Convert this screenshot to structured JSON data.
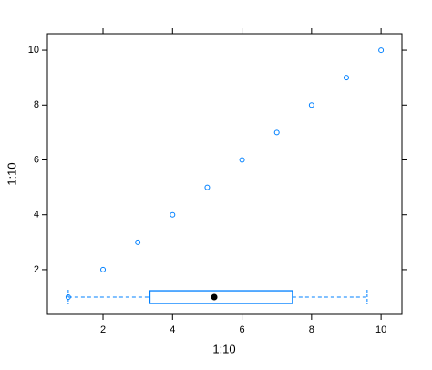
{
  "chart_data": {
    "type": "scatter",
    "xlabel": "1:10",
    "ylabel": "1:10",
    "x": [
      1,
      2,
      3,
      4,
      5,
      6,
      7,
      8,
      9,
      10
    ],
    "y": [
      1,
      2,
      3,
      4,
      5,
      6,
      7,
      8,
      9,
      10
    ],
    "color": "#0080ff",
    "box": {
      "y": 1,
      "min": 1,
      "q1": 3.35,
      "median": 5.2,
      "q3": 7.45,
      "max": 9.6,
      "color": "#0080ff",
      "median_color": "#000000"
    },
    "xlim": [
      0.4,
      10.6
    ],
    "ylim": [
      0.37,
      10.6
    ],
    "xticks": [
      2,
      4,
      6,
      8,
      10
    ],
    "yticks": [
      2,
      4,
      6,
      8,
      10
    ]
  }
}
